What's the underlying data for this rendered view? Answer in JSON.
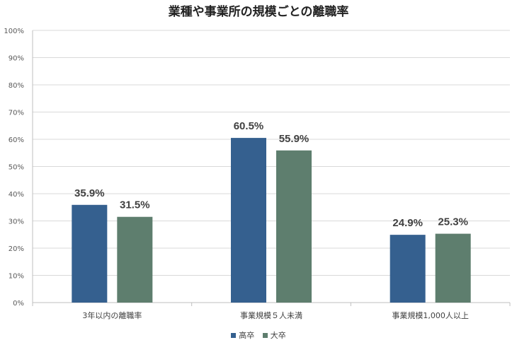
{
  "chart_data": {
    "type": "bar",
    "title": "業種や事業所の規模ごとの離職率",
    "categories": [
      "3年以内の離職率",
      "事業規模５人未満",
      "事業規模1,000人以上"
    ],
    "series": [
      {
        "name": "高卒",
        "values": [
          35.9,
          60.5,
          24.9
        ],
        "labels": [
          "35.9%",
          "60.5%",
          "24.9%"
        ],
        "color": "#35608f"
      },
      {
        "name": "大卒",
        "values": [
          31.5,
          55.9,
          25.3
        ],
        "labels": [
          "31.5%",
          "55.9%",
          "25.3%"
        ],
        "color": "#5e7e6e"
      }
    ],
    "ylim": [
      0,
      100
    ],
    "yticks": [
      0,
      10,
      20,
      30,
      40,
      50,
      60,
      70,
      80,
      90,
      100
    ],
    "ytick_labels": [
      "0%",
      "10%",
      "20%",
      "30%",
      "40%",
      "50%",
      "60%",
      "70%",
      "80%",
      "90%",
      "100%"
    ],
    "grid": true,
    "legend_position": "bottom"
  }
}
